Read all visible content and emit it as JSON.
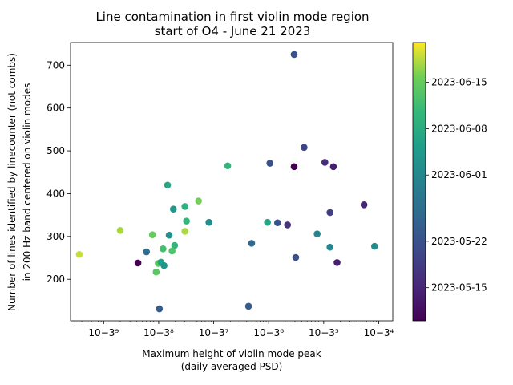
{
  "chart_data": {
    "type": "scatter",
    "title_lines": [
      "Line contamination in first violin mode region",
      "start of O4 - June 21 2023"
    ],
    "xlabel_lines": [
      "Maximum height of violin mode peak",
      "(daily averaged PSD)"
    ],
    "ylabel_lines": [
      "Number of lines identified by linecounter (not combs)",
      "in 200 Hz band centered on violin modes"
    ],
    "x_scale": "log",
    "xlim": [
      2.5e-40,
      1.8e-34
    ],
    "ylim": [
      103,
      753
    ],
    "x_ticks": [
      {
        "exp": -39,
        "label": "10−3⁹"
      },
      {
        "exp": -38,
        "label": "10−3⁸"
      },
      {
        "exp": -37,
        "label": "10−3⁷"
      },
      {
        "exp": -36,
        "label": "10−3⁶"
      },
      {
        "exp": -35,
        "label": "10−3⁵"
      },
      {
        "exp": -34,
        "label": "10−3⁴"
      }
    ],
    "y_ticks": [
      200,
      300,
      400,
      500,
      600,
      700
    ],
    "colorbar": {
      "colormap": "viridis",
      "range": [
        "2023-05-10",
        "2023-06-21"
      ],
      "ticks": [
        "2023-05-15",
        "2023-05-22",
        "2023-06-01",
        "2023-06-08",
        "2023-06-15"
      ]
    },
    "points": [
      {
        "x": 2.9e-36,
        "y": 725,
        "date": "2023-05-22"
      },
      {
        "x": 4.4e-36,
        "y": 508,
        "date": "2023-05-20"
      },
      {
        "x": 1.05e-35,
        "y": 473,
        "date": "2023-05-16"
      },
      {
        "x": 1.5e-35,
        "y": 463,
        "date": "2023-05-14"
      },
      {
        "x": 2.9e-36,
        "y": 463,
        "date": "2023-05-10"
      },
      {
        "x": 1.05e-36,
        "y": 471,
        "date": "2023-05-22"
      },
      {
        "x": 1.8e-37,
        "y": 465,
        "date": "2023-06-10"
      },
      {
        "x": 1.45e-38,
        "y": 420,
        "date": "2023-06-07"
      },
      {
        "x": 5.3e-38,
        "y": 383,
        "date": "2023-06-16"
      },
      {
        "x": 3e-38,
        "y": 370,
        "date": "2023-06-09"
      },
      {
        "x": 1.85e-38,
        "y": 364,
        "date": "2023-06-04"
      },
      {
        "x": 5.4e-35,
        "y": 374,
        "date": "2023-05-15"
      },
      {
        "x": 1.3e-35,
        "y": 356,
        "date": "2023-05-19"
      },
      {
        "x": 2.2e-36,
        "y": 327,
        "date": "2023-05-17"
      },
      {
        "x": 1.45e-36,
        "y": 332,
        "date": "2023-05-22"
      },
      {
        "x": 9.5e-37,
        "y": 333,
        "date": "2023-06-07"
      },
      {
        "x": 8.2e-38,
        "y": 333,
        "date": "2023-06-02"
      },
      {
        "x": 3.2e-38,
        "y": 336,
        "date": "2023-06-10"
      },
      {
        "x": 2e-39,
        "y": 314,
        "date": "2023-06-18"
      },
      {
        "x": 3e-38,
        "y": 312,
        "date": "2023-06-18"
      },
      {
        "x": 7.7e-39,
        "y": 304,
        "date": "2023-06-15"
      },
      {
        "x": 1.55e-38,
        "y": 303,
        "date": "2023-06-03"
      },
      {
        "x": 7.6e-36,
        "y": 306,
        "date": "2023-06-01"
      },
      {
        "x": 4.9e-37,
        "y": 284,
        "date": "2023-05-26"
      },
      {
        "x": 1.95e-38,
        "y": 279,
        "date": "2023-06-10"
      },
      {
        "x": 1.2e-38,
        "y": 271,
        "date": "2023-06-12"
      },
      {
        "x": 1.75e-38,
        "y": 266,
        "date": "2023-06-13"
      },
      {
        "x": 6e-39,
        "y": 264,
        "date": "2023-05-27"
      },
      {
        "x": 1.3e-35,
        "y": 275,
        "date": "2023-06-01"
      },
      {
        "x": 8.4e-35,
        "y": 277,
        "date": "2023-06-02"
      },
      {
        "x": 3.6e-40,
        "y": 258,
        "date": "2023-06-19"
      },
      {
        "x": 3.1e-36,
        "y": 251,
        "date": "2023-05-22"
      },
      {
        "x": 4.2e-39,
        "y": 238,
        "date": "2023-05-10"
      },
      {
        "x": 9.8e-39,
        "y": 237,
        "date": "2023-06-14"
      },
      {
        "x": 1.1e-38,
        "y": 240,
        "date": "2023-06-06"
      },
      {
        "x": 1.75e-35,
        "y": 239,
        "date": "2023-05-14"
      },
      {
        "x": 1.25e-38,
        "y": 232,
        "date": "2023-06-04"
      },
      {
        "x": 9e-39,
        "y": 217,
        "date": "2023-06-14"
      },
      {
        "x": 1.03e-38,
        "y": 131,
        "date": "2023-05-24"
      },
      {
        "x": 4.3e-37,
        "y": 137,
        "date": "2023-05-24"
      }
    ]
  }
}
